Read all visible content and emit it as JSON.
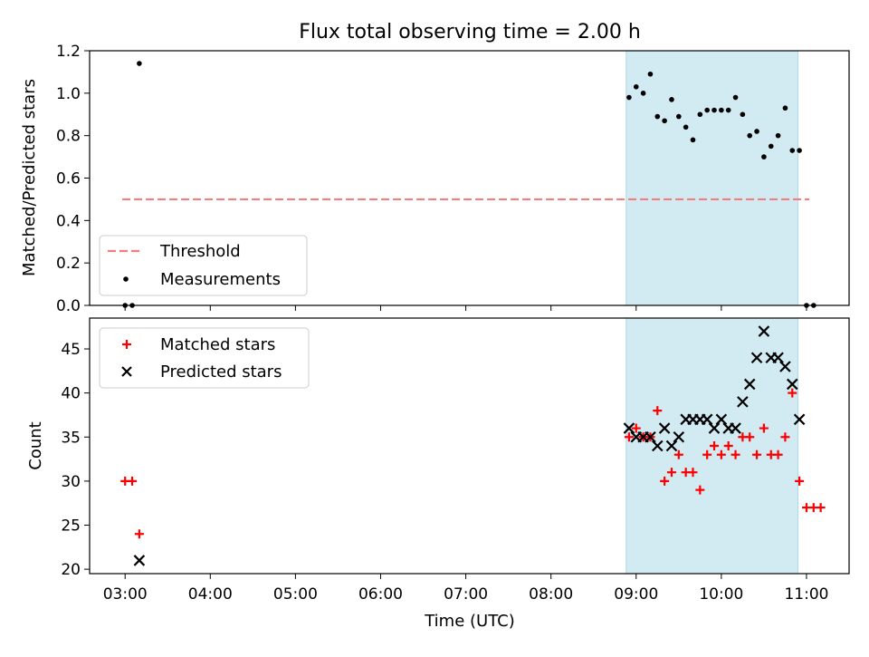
{
  "title": "Flux total observing time = 2.00 h",
  "colors": {
    "span": "#add8e6",
    "threshold": "#f08080",
    "measurements": "#000000",
    "matched": "#ff0000",
    "predicted": "#000000"
  },
  "chart_data": [
    {
      "type": "scatter",
      "title": "Flux total observing time = 2.00 h",
      "xlabel": "",
      "ylabel": "Matched/Predicted stars",
      "ylim": [
        0,
        1.2
      ],
      "yticks": [
        "0.0",
        "0.2",
        "0.4",
        "0.6",
        "0.8",
        "1.0",
        "1.2"
      ],
      "xlim": [
        "02:35",
        "11:30"
      ],
      "highlight_span": [
        "08:53",
        "10:54"
      ],
      "legend": {
        "position": "lower-left",
        "entries": [
          "Threshold",
          "Measurements"
        ]
      },
      "threshold": {
        "name": "Threshold",
        "value": 0.5,
        "x_range": [
          "02:58",
          "11:02"
        ]
      },
      "series": [
        {
          "name": "Measurements",
          "marker": "dot",
          "points": [
            [
              "03:00",
              0.0
            ],
            [
              "03:05",
              0.0
            ],
            [
              "03:10",
              1.14
            ],
            [
              "08:55",
              0.98
            ],
            [
              "09:00",
              1.03
            ],
            [
              "09:05",
              1.0
            ],
            [
              "09:10",
              1.09
            ],
            [
              "09:15",
              0.89
            ],
            [
              "09:20",
              0.87
            ],
            [
              "09:25",
              0.97
            ],
            [
              "09:30",
              0.89
            ],
            [
              "09:35",
              0.84
            ],
            [
              "09:40",
              0.78
            ],
            [
              "09:45",
              0.9
            ],
            [
              "09:50",
              0.92
            ],
            [
              "09:55",
              0.92
            ],
            [
              "10:00",
              0.92
            ],
            [
              "10:05",
              0.92
            ],
            [
              "10:10",
              0.98
            ],
            [
              "10:15",
              0.9
            ],
            [
              "10:20",
              0.8
            ],
            [
              "10:25",
              0.82
            ],
            [
              "10:30",
              0.7
            ],
            [
              "10:35",
              0.75
            ],
            [
              "10:40",
              0.8
            ],
            [
              "10:45",
              0.93
            ],
            [
              "10:50",
              0.73
            ],
            [
              "10:55",
              0.73
            ],
            [
              "11:00",
              0.0
            ],
            [
              "11:05",
              0.0
            ]
          ]
        }
      ]
    },
    {
      "type": "scatter",
      "xlabel": "Time (UTC)",
      "ylabel": "Count",
      "ylim": [
        19.5,
        48.5
      ],
      "yticks": [
        "20",
        "25",
        "30",
        "35",
        "40",
        "45"
      ],
      "xticks": [
        "03:00",
        "04:00",
        "05:00",
        "06:00",
        "07:00",
        "08:00",
        "09:00",
        "10:00",
        "11:00"
      ],
      "xlim": [
        "02:35",
        "11:30"
      ],
      "highlight_span": [
        "08:53",
        "10:54"
      ],
      "legend": {
        "position": "upper-left",
        "entries": [
          "Matched stars",
          "Predicted stars"
        ]
      },
      "series": [
        {
          "name": "Matched stars",
          "marker": "plus",
          "points": [
            [
              "03:00",
              30
            ],
            [
              "03:05",
              30
            ],
            [
              "03:10",
              24
            ],
            [
              "08:55",
              35
            ],
            [
              "09:00",
              36
            ],
            [
              "09:05",
              35
            ],
            [
              "09:10",
              35
            ],
            [
              "09:15",
              38
            ],
            [
              "09:20",
              30
            ],
            [
              "09:25",
              31
            ],
            [
              "09:30",
              33
            ],
            [
              "09:35",
              31
            ],
            [
              "09:40",
              31
            ],
            [
              "09:45",
              29
            ],
            [
              "09:50",
              33
            ],
            [
              "09:55",
              34
            ],
            [
              "10:00",
              33
            ],
            [
              "10:05",
              34
            ],
            [
              "10:10",
              33
            ],
            [
              "10:15",
              35
            ],
            [
              "10:20",
              35
            ],
            [
              "10:25",
              33
            ],
            [
              "10:30",
              36
            ],
            [
              "10:35",
              33
            ],
            [
              "10:40",
              33
            ],
            [
              "10:45",
              35
            ],
            [
              "10:50",
              40
            ],
            [
              "10:55",
              30
            ],
            [
              "11:00",
              27
            ],
            [
              "11:05",
              27
            ],
            [
              "11:10",
              27
            ]
          ]
        },
        {
          "name": "Predicted stars",
          "marker": "x",
          "points": [
            [
              "03:10",
              21
            ],
            [
              "08:55",
              36
            ],
            [
              "09:00",
              35
            ],
            [
              "09:05",
              35
            ],
            [
              "09:10",
              35
            ],
            [
              "09:15",
              34
            ],
            [
              "09:20",
              36
            ],
            [
              "09:25",
              34
            ],
            [
              "09:30",
              35
            ],
            [
              "09:35",
              37
            ],
            [
              "09:40",
              37
            ],
            [
              "09:45",
              37
            ],
            [
              "09:50",
              37
            ],
            [
              "09:55",
              36
            ],
            [
              "10:00",
              37
            ],
            [
              "10:05",
              36
            ],
            [
              "10:10",
              36
            ],
            [
              "10:15",
              39
            ],
            [
              "10:20",
              41
            ],
            [
              "10:25",
              44
            ],
            [
              "10:30",
              47
            ],
            [
              "10:35",
              44
            ],
            [
              "10:40",
              44
            ],
            [
              "10:45",
              43
            ],
            [
              "10:50",
              41
            ],
            [
              "10:55",
              37
            ]
          ]
        }
      ]
    }
  ]
}
